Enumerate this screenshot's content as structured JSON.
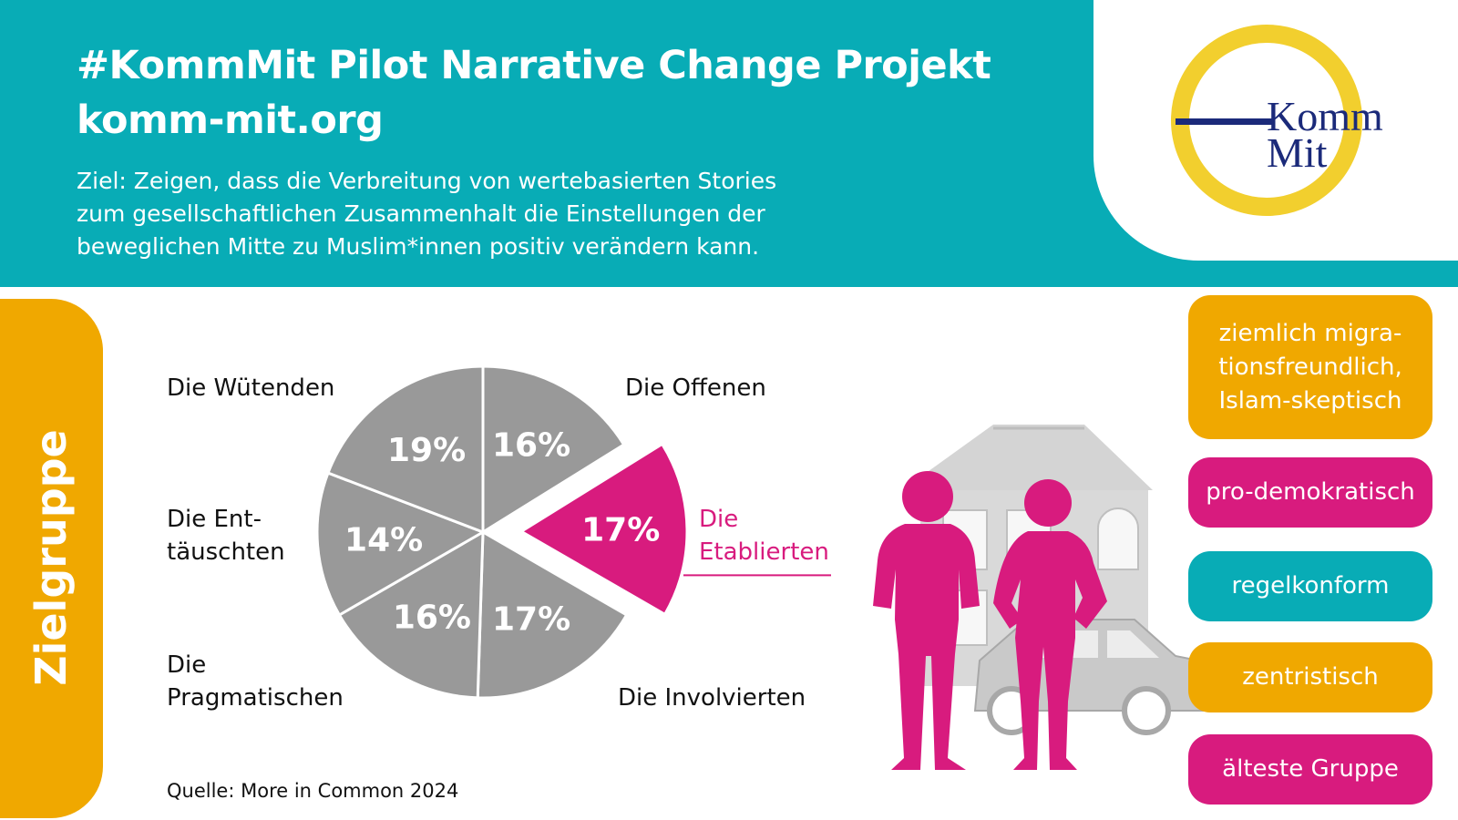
{
  "header": {
    "title_line1": "#KommMit Pilot Narrative Change Projekt",
    "title_line2": "komm-mit.org",
    "goal_lines": [
      "Ziel:  Zeigen, dass die Verbreitung von wertebasierten Stories",
      "zum gesellschaftlichen Zusammenhalt die Einstellungen der",
      "beweglichen Mitte zu Muslim*innen positiv verändern kann."
    ]
  },
  "logo": {
    "line1": "Komm",
    "line2": "Mit",
    "ring_color": "#f2cf2e",
    "text_color": "#1b2a7a"
  },
  "side_tab": {
    "label": "Zielgruppe",
    "color": "#f0a800"
  },
  "chart_data": {
    "type": "pie",
    "title": "",
    "segments": [
      {
        "name_lines": [
          "Die Offenen"
        ],
        "value": 16,
        "label": "16%",
        "highlight": false
      },
      {
        "name_lines": [
          "Die",
          "Etablierten"
        ],
        "value": 17,
        "label": "17%",
        "highlight": true
      },
      {
        "name_lines": [
          "Die Involvierten"
        ],
        "value": 17,
        "label": "17%",
        "highlight": false
      },
      {
        "name_lines": [
          "Die",
          "Pragmatischen"
        ],
        "value": 16,
        "label": "16%",
        "highlight": false
      },
      {
        "name_lines": [
          "Die Ent-",
          "täuschten"
        ],
        "value": 14,
        "label": "14%",
        "highlight": false
      },
      {
        "name_lines": [
          "Die Wütenden"
        ],
        "value": 19,
        "label": "19%",
        "highlight": false
      }
    ],
    "colors": {
      "default": "#999999",
      "highlight": "#d81b7e"
    }
  },
  "source": "Quelle: More in Common 2024",
  "attributes": [
    {
      "lines": [
        "ziemlich migra-",
        "tionsfreundlich,",
        "Islam-skeptisch"
      ],
      "color": "#f0a800"
    },
    {
      "lines": [
        "pro-demokratisch"
      ],
      "color": "#d81b7e"
    },
    {
      "lines": [
        "regelkonform"
      ],
      "color": "#08acb6"
    },
    {
      "lines": [
        "zentristisch"
      ],
      "color": "#f0a800"
    },
    {
      "lines": [
        "älteste Gruppe"
      ],
      "color": "#d81b7e"
    }
  ]
}
